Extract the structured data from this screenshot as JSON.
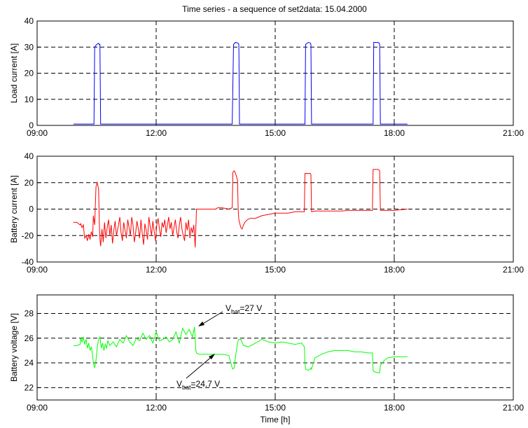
{
  "chart_data": [
    {
      "type": "line",
      "title": "Time series - a sequence of set2data: 15.04.2000",
      "xlabel": "",
      "ylabel": "Load current [A]",
      "xlim": [
        "09:00",
        "21:00"
      ],
      "xticks": [
        "09:00",
        "12:00",
        "15:00",
        "18:00",
        "21:00"
      ],
      "ylim": [
        0,
        40
      ],
      "yticks": [
        0,
        10,
        20,
        30,
        40
      ],
      "grid": true,
      "series": [
        {
          "color": "#0000ff",
          "x": [
            "09:55",
            "10:22",
            "10:26",
            "10:27",
            "10:30",
            "10:33",
            "10:34",
            "10:35",
            "10:36",
            "10:37",
            "13:55",
            "13:57",
            "14:00",
            "14:04",
            "14:05",
            "14:06",
            "15:45",
            "15:46",
            "15:50",
            "15:53",
            "15:54",
            "15:55",
            "17:28",
            "17:29",
            "17:35",
            "17:37",
            "17:38",
            "17:39",
            "18:20"
          ],
          "y": [
            0.5,
            0.5,
            0.5,
            30,
            31,
            31.5,
            31,
            31,
            0.5,
            0.5,
            0.5,
            31,
            31.8,
            31.5,
            31,
            0.5,
            0.5,
            31,
            31.8,
            31.6,
            31,
            0.5,
            0.5,
            31.8,
            31.8,
            31.6,
            31,
            0.5,
            0.5
          ]
        }
      ]
    },
    {
      "type": "line",
      "title": "",
      "xlabel": "",
      "ylabel": "Battery current [A]",
      "xlim": [
        "09:00",
        "21:00"
      ],
      "xticks": [
        "09:00",
        "12:00",
        "15:00",
        "18:00",
        "21:00"
      ],
      "ylim": [
        -40,
        40
      ],
      "yticks": [
        -40,
        -20,
        0,
        20,
        40
      ],
      "grid": true,
      "series": [
        {
          "color": "#ff0000",
          "x": [
            "09:55",
            "10:00",
            "10:05",
            "10:06",
            "10:08",
            "10:10",
            "10:11",
            "10:12",
            "10:14",
            "10:16",
            "10:18",
            "10:20",
            "10:22",
            "10:24",
            "10:25",
            "10:27",
            "10:29",
            "10:31",
            "10:33",
            "10:34",
            "10:35",
            "10:36",
            "10:38",
            "10:40",
            "10:42",
            "10:44",
            "10:46",
            "10:48",
            "10:50",
            "10:52",
            "10:54",
            "10:56",
            "10:58",
            "11:00",
            "11:03",
            "11:05",
            "11:07",
            "11:09",
            "11:11",
            "11:13",
            "11:15",
            "11:17",
            "11:19",
            "11:21",
            "11:23",
            "11:25",
            "11:27",
            "11:29",
            "11:31",
            "11:33",
            "11:35",
            "11:37",
            "11:39",
            "11:41",
            "11:43",
            "11:45",
            "11:47",
            "11:49",
            "11:51",
            "11:53",
            "11:55",
            "11:57",
            "11:59",
            "12:01",
            "12:03",
            "12:05",
            "12:07",
            "12:09",
            "12:11",
            "12:13",
            "12:15",
            "12:17",
            "12:19",
            "12:21",
            "12:23",
            "12:25",
            "12:27",
            "12:29",
            "12:31",
            "12:33",
            "12:35",
            "12:37",
            "12:39",
            "12:41",
            "12:43",
            "12:45",
            "12:47",
            "12:49",
            "12:51",
            "12:53",
            "12:55",
            "12:57",
            "12:58",
            "12:59",
            "13:01",
            "13:05",
            "13:30",
            "13:33",
            "13:40",
            "13:50",
            "13:55",
            "13:56",
            "13:58",
            "14:00",
            "14:03",
            "14:04",
            "14:05",
            "14:06",
            "14:08",
            "14:10",
            "14:12",
            "14:14",
            "14:16",
            "14:18",
            "14:22",
            "14:30",
            "14:40",
            "14:50",
            "15:00",
            "15:10",
            "15:20",
            "15:30",
            "15:40",
            "15:44",
            "15:45",
            "15:46",
            "15:50",
            "15:53",
            "15:54",
            "15:55",
            "16:00",
            "16:10",
            "16:20",
            "16:30",
            "16:40",
            "16:50",
            "17:00",
            "17:10",
            "17:20",
            "17:27",
            "17:28",
            "17:29",
            "17:36",
            "17:38",
            "17:39",
            "17:50",
            "18:00",
            "18:10",
            "18:20"
          ],
          "y": [
            -10,
            -10,
            -12,
            -11,
            -14,
            -12,
            -18,
            -22,
            -20,
            -24,
            -19,
            -23,
            -17,
            -21,
            -5,
            -12,
            17,
            20,
            15,
            -10,
            -22,
            -28,
            -15,
            -25,
            -10,
            -22,
            -14,
            -8,
            -20,
            -12,
            -26,
            -16,
            -9,
            -20,
            -12,
            -6,
            -18,
            -24,
            -10,
            -16,
            -22,
            -8,
            -14,
            -20,
            -6,
            -12,
            -25,
            -18,
            -9,
            -15,
            -22,
            -8,
            -19,
            -27,
            -11,
            -16,
            -23,
            -6,
            -13,
            -20,
            -9,
            -17,
            -24,
            -12,
            -7,
            -15,
            -21,
            -10,
            -14,
            -8,
            -18,
            -12,
            -6,
            -15,
            -10,
            -20,
            -14,
            -8,
            -17,
            -22,
            -12,
            -6,
            -15,
            -20,
            -24,
            -10,
            -16,
            -8,
            -22,
            -14,
            -18,
            -12,
            -20,
            -29,
            0,
            0,
            0,
            1,
            1,
            0,
            1,
            28,
            29,
            27,
            22,
            0,
            -8,
            -10,
            -14,
            -15,
            -12,
            -10,
            -9,
            -8,
            -7,
            -7,
            -5,
            -4,
            -3,
            -3,
            -3,
            -2,
            -2,
            -2,
            27,
            27,
            27,
            27,
            26,
            -2,
            -1.5,
            -1.5,
            -1.5,
            -1.5,
            -1.5,
            -1,
            -1,
            -1,
            -1,
            -1,
            30,
            30,
            30,
            29,
            -1,
            -1,
            -1,
            -0.5,
            0
          ]
        }
      ]
    },
    {
      "type": "line",
      "title": "",
      "xlabel": "Time [h]",
      "ylabel": "Battery voltage [V]",
      "xlim": [
        "09:00",
        "21:00"
      ],
      "xticks": [
        "09:00",
        "12:00",
        "15:00",
        "18:00",
        "21:00"
      ],
      "ylim": [
        21,
        29.5
      ],
      "yticks": [
        22,
        24,
        26,
        28
      ],
      "grid": true,
      "series": [
        {
          "color": "#00ff00",
          "x": [
            "09:55",
            "10:00",
            "10:05",
            "10:06",
            "10:08",
            "10:10",
            "10:12",
            "10:14",
            "10:16",
            "10:18",
            "10:20",
            "10:22",
            "10:24",
            "10:25",
            "10:27",
            "10:29",
            "10:31",
            "10:33",
            "10:35",
            "10:37",
            "10:39",
            "10:41",
            "10:43",
            "10:45",
            "10:47",
            "10:50",
            "10:55",
            "11:00",
            "11:05",
            "11:10",
            "11:15",
            "11:20",
            "11:25",
            "11:30",
            "11:35",
            "11:40",
            "11:45",
            "11:50",
            "11:55",
            "12:00",
            "12:05",
            "12:10",
            "12:15",
            "12:20",
            "12:25",
            "12:30",
            "12:35",
            "12:40",
            "12:45",
            "12:50",
            "12:55",
            "12:58",
            "13:00",
            "13:01",
            "13:05",
            "13:30",
            "13:40",
            "13:50",
            "13:55",
            "13:56",
            "13:58",
            "14:00",
            "14:03",
            "14:04",
            "14:05",
            "14:08",
            "14:12",
            "14:20",
            "14:30",
            "14:40",
            "14:50",
            "15:00",
            "15:10",
            "15:20",
            "15:30",
            "15:40",
            "15:44",
            "15:45",
            "15:46",
            "15:50",
            "15:53",
            "15:54",
            "15:55",
            "16:00",
            "16:10",
            "16:20",
            "16:30",
            "16:40",
            "16:50",
            "17:00",
            "17:10",
            "17:20",
            "17:27",
            "17:28",
            "17:29",
            "17:36",
            "17:38",
            "17:39",
            "17:45",
            "17:50",
            "18:00",
            "18:10",
            "18:20"
          ],
          "y": [
            25.4,
            25.4,
            25.5,
            26.0,
            25.7,
            26.1,
            25.5,
            25.9,
            25.2,
            25.6,
            25.0,
            25.3,
            24.6,
            24.0,
            23.6,
            24.2,
            25.3,
            25.9,
            26.1,
            25.2,
            25.6,
            25.0,
            25.5,
            25.2,
            25.8,
            25.4,
            25.7,
            25.3,
            25.9,
            25.6,
            26.2,
            25.7,
            25.4,
            26.0,
            25.8,
            26.4,
            25.9,
            26.2,
            25.6,
            26.5,
            25.8,
            25.9,
            26.1,
            25.7,
            25.9,
            26.5,
            25.6,
            26.8,
            26.3,
            26.7,
            26.1,
            26.9,
            25.0,
            24.8,
            24.7,
            24.7,
            24.7,
            24.6,
            23.6,
            23.5,
            23.6,
            24.5,
            25.6,
            25.8,
            25.9,
            25.9,
            25.4,
            25.3,
            25.6,
            25.9,
            25.7,
            25.6,
            25.7,
            25.6,
            25.5,
            25.6,
            25.3,
            24.0,
            23.5,
            23.4,
            23.5,
            23.6,
            23.5,
            24.4,
            24.7,
            24.9,
            25.0,
            25.0,
            25.0,
            24.9,
            24.9,
            24.8,
            24.8,
            23.4,
            23.3,
            23.2,
            23.2,
            23.8,
            24.2,
            24.4,
            24.5,
            24.5,
            24.5
          ]
        }
      ],
      "annotations": [
        {
          "main": "V",
          "sub": "bat",
          "value": "=27 V"
        },
        {
          "main": "V",
          "sub": "bat",
          "value": "=24.7 V"
        }
      ]
    }
  ]
}
